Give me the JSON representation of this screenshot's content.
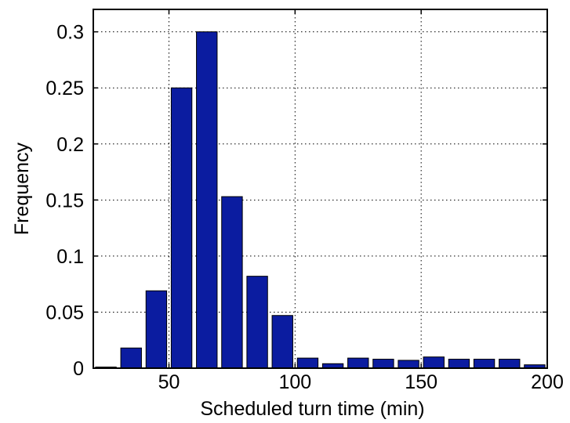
{
  "chart_data": {
    "type": "bar",
    "title": "",
    "xlabel": "Scheduled turn time (min)",
    "ylabel": "Frequency",
    "xlim": [
      20,
      200
    ],
    "ylim": [
      0,
      0.32
    ],
    "x_ticks": [
      50,
      100,
      150,
      200
    ],
    "x_tick_labels": [
      "50",
      "100",
      "150",
      "200"
    ],
    "y_ticks": [
      0,
      0.05,
      0.1,
      0.15,
      0.2,
      0.25,
      0.3
    ],
    "y_tick_labels": [
      "0",
      "0.05",
      "0.1",
      "0.15",
      "0.2",
      "0.25",
      "0.3"
    ],
    "grid": true,
    "bin_width": 10,
    "bar_color": "#0b1ca0",
    "bar_edge_color": "#000000",
    "x": [
      25,
      35,
      45,
      55,
      65,
      75,
      85,
      95,
      105,
      115,
      125,
      135,
      145,
      155,
      165,
      175,
      185,
      195
    ],
    "values": [
      0.001,
      0.018,
      0.069,
      0.25,
      0.3,
      0.153,
      0.082,
      0.047,
      0.009,
      0.004,
      0.009,
      0.008,
      0.007,
      0.01,
      0.008,
      0.008,
      0.008,
      0.003
    ]
  }
}
